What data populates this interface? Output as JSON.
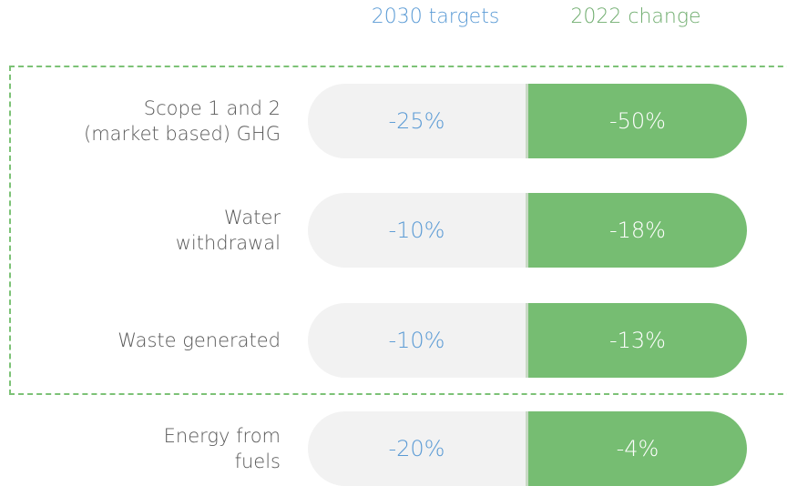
{
  "header": {
    "targets": "2030 targets",
    "change": "2022 change"
  },
  "rows": [
    {
      "label_lines": [
        "Scope 1 and 2",
        "(market based) GHG"
      ],
      "target": "-25%",
      "change": "-50%"
    },
    {
      "label_lines": [
        "Water",
        "withdrawal"
      ],
      "target": "-10%",
      "change": "-18%"
    },
    {
      "label_lines": [
        "Waste generated"
      ],
      "target": "-10%",
      "change": "-13%"
    },
    {
      "label_lines": [
        "Energy from",
        "fuels"
      ],
      "target": "-20%",
      "change": "-4%"
    }
  ]
}
